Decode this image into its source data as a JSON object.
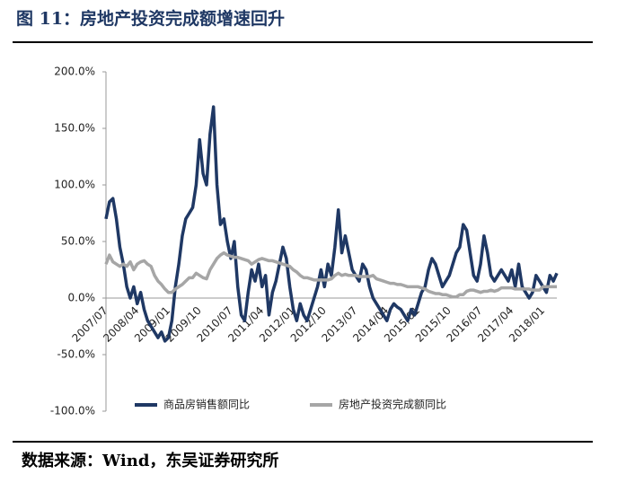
{
  "chart_data": {
    "type": "line",
    "title": "图 11：房地产投资完成额增速回升",
    "source": "数据来源：Wind，东吴证券研究所",
    "categories": [
      "2007/07",
      null,
      null,
      null,
      null,
      null,
      null,
      null,
      null,
      "2008/04",
      null,
      null,
      null,
      null,
      null,
      null,
      null,
      null,
      "2009/01",
      null,
      null,
      null,
      null,
      null,
      null,
      null,
      null,
      "2009/10",
      null,
      null,
      null,
      null,
      null,
      null,
      null,
      null,
      "2010/07",
      null,
      null,
      null,
      null,
      null,
      null,
      null,
      null,
      "2011/04",
      null,
      null,
      null,
      null,
      null,
      null,
      null,
      null,
      "2012/01",
      null,
      null,
      null,
      null,
      null,
      null,
      null,
      null,
      "2012/10",
      null,
      null,
      null,
      null,
      null,
      null,
      null,
      null,
      "2013/07",
      null,
      null,
      null,
      null,
      null,
      null,
      null,
      null,
      "2014/04",
      null,
      null,
      null,
      null,
      null,
      null,
      null,
      null,
      "2015/01",
      null,
      null,
      null,
      null,
      null,
      null,
      null,
      null,
      "2015/10",
      null,
      null,
      null,
      null,
      null,
      null,
      null,
      null,
      "2016/07",
      null,
      null,
      null,
      null,
      null,
      null,
      null,
      null,
      "2017/04",
      null,
      null,
      null,
      null,
      null,
      null,
      null,
      null,
      "2018/01",
      null,
      null,
      null,
      null
    ],
    "series": [
      {
        "name": "商品房销售额同比",
        "color": "#1f3864",
        "values": [
          70,
          85,
          88,
          70,
          45,
          30,
          10,
          0,
          10,
          -5,
          5,
          -10,
          -20,
          -25,
          -30,
          -35,
          -30,
          -38,
          -35,
          -20,
          10,
          30,
          55,
          70,
          75,
          80,
          100,
          140,
          110,
          100,
          145,
          169,
          100,
          65,
          70,
          50,
          35,
          50,
          10,
          -15,
          -20,
          5,
          25,
          15,
          30,
          10,
          20,
          -15,
          5,
          15,
          30,
          45,
          35,
          10,
          -10,
          -20,
          -5,
          -15,
          -20,
          -10,
          0,
          10,
          25,
          10,
          30,
          20,
          45,
          78,
          40,
          55,
          40,
          25,
          20,
          15,
          30,
          25,
          10,
          0,
          -5,
          -10,
          -15,
          -20,
          -10,
          -5,
          -8,
          -10,
          -15,
          -20,
          -10,
          -15,
          -5,
          5,
          10,
          25,
          35,
          30,
          20,
          10,
          15,
          20,
          30,
          40,
          45,
          65,
          60,
          40,
          20,
          15,
          30,
          55,
          40,
          20,
          15,
          20,
          25,
          20,
          15,
          25,
          10,
          30,
          10,
          5,
          0,
          5,
          20,
          15,
          10,
          5,
          20,
          15,
          22
        ]
      },
      {
        "name": "房地产投资完成额同比",
        "color": "#a6a6a6",
        "values": [
          30,
          38,
          32,
          30,
          28,
          30,
          28,
          32,
          25,
          30,
          32,
          33,
          30,
          28,
          20,
          15,
          12,
          8,
          5,
          5,
          8,
          10,
          12,
          15,
          18,
          18,
          22,
          20,
          18,
          17,
          25,
          30,
          35,
          38,
          40,
          38,
          37,
          36,
          36,
          35,
          34,
          33,
          30,
          32,
          34,
          35,
          34,
          33,
          33,
          32,
          31,
          30,
          29,
          28,
          25,
          23,
          20,
          18,
          18,
          17,
          16,
          16,
          16,
          16,
          16,
          17,
          20,
          22,
          20,
          21,
          20,
          20,
          20,
          19,
          19,
          19,
          19,
          20,
          17,
          16,
          15,
          14,
          13,
          13,
          12,
          12,
          11,
          10,
          10,
          10,
          10,
          9,
          8,
          6,
          5,
          4,
          4,
          3,
          3,
          2,
          1,
          1,
          3,
          3,
          6,
          7,
          7,
          6,
          5,
          6,
          6,
          7,
          6,
          7,
          9,
          9,
          9,
          9,
          8,
          8,
          8,
          8,
          8,
          7,
          7,
          7,
          10,
          10,
          10,
          10,
          10
        ]
      }
    ],
    "ylim": [
      -100,
      200
    ],
    "yticks": [
      {
        "value": -100,
        "label": "-100.0%"
      },
      {
        "value": -50,
        "label": "-50.0%"
      },
      {
        "value": 0,
        "label": "0.0%"
      },
      {
        "value": 50,
        "label": "50.0%"
      },
      {
        "value": 100,
        "label": "100.0%"
      },
      {
        "value": 150,
        "label": "150.0%"
      },
      {
        "value": 200,
        "label": "200.0%"
      }
    ],
    "legend": "bottom"
  }
}
